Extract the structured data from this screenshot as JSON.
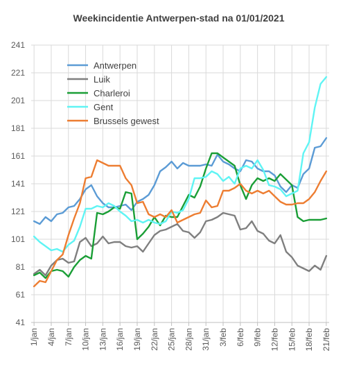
{
  "chart_data": {
    "type": "line",
    "title": "Weekincidentie  Antwerpen-stad  na 01/01/2021",
    "xlabel": "",
    "ylabel": "",
    "ylim": [
      41,
      241
    ],
    "yticks": [
      41,
      61,
      81,
      101,
      121,
      141,
      161,
      181,
      201,
      221,
      241
    ],
    "grid": true,
    "legend_position": "top-left",
    "x_tick_labels": [
      "1/jan",
      "4/jan",
      "7/jan",
      "10/jan",
      "13/jan",
      "16/jan",
      "19/jan",
      "22/jan",
      "25/jan",
      "28/jan",
      "31/jan",
      "3/feb",
      "6/feb",
      "9/feb",
      "12/feb",
      "15/feb",
      "18/feb",
      "21/feb"
    ],
    "x_tick_days": [
      1,
      4,
      7,
      10,
      13,
      16,
      19,
      22,
      25,
      28,
      31,
      34,
      37,
      40,
      43,
      46,
      49,
      52
    ],
    "series": [
      {
        "name": "Antwerpen",
        "color": "#5B9BD5",
        "x": [
          1,
          2,
          3,
          4,
          5,
          6,
          7,
          8,
          9,
          10,
          11,
          12,
          13,
          14,
          15,
          16,
          17,
          18,
          19,
          20,
          21,
          22,
          23,
          24,
          25,
          26,
          27,
          28,
          29,
          30,
          31,
          32,
          33,
          34,
          35,
          36,
          37,
          38,
          39,
          40,
          41,
          42,
          43,
          44,
          45,
          46,
          47,
          48,
          49,
          50,
          51,
          52
        ],
        "values": [
          114,
          112,
          117,
          114,
          119,
          120,
          124,
          125,
          130,
          137,
          140,
          132,
          127,
          124,
          124,
          125,
          126,
          122,
          128,
          130,
          133,
          140,
          150,
          153,
          157,
          152,
          156,
          154,
          154,
          154,
          155,
          154,
          162,
          157,
          155,
          152,
          150,
          158,
          157,
          152,
          150,
          150,
          147,
          139,
          135,
          140,
          138,
          148,
          152,
          167,
          168,
          174
        ]
      },
      {
        "name": "Luik",
        "color": "#7F7F7F",
        "x": [
          1,
          2,
          3,
          4,
          5,
          6,
          7,
          8,
          9,
          10,
          11,
          12,
          13,
          14,
          15,
          16,
          17,
          18,
          19,
          20,
          21,
          22,
          23,
          24,
          25,
          26,
          27,
          28,
          29,
          30,
          31,
          32,
          33,
          34,
          35,
          36,
          37,
          38,
          39,
          40,
          41,
          42,
          43,
          44,
          45,
          46,
          47,
          48,
          49,
          50,
          51,
          52
        ],
        "values": [
          76,
          79,
          75,
          82,
          86,
          87,
          84,
          85,
          99,
          102,
          96,
          98,
          103,
          98,
          99,
          99,
          96,
          95,
          96,
          92,
          98,
          104,
          107,
          108,
          110,
          112,
          107,
          106,
          102,
          106,
          114,
          115,
          117,
          120,
          119,
          118,
          108,
          109,
          114,
          107,
          105,
          100,
          98,
          104,
          92,
          88,
          82,
          80,
          78,
          82,
          79,
          89
        ]
      },
      {
        "name": "Charleroi",
        "color": "#1A9E36",
        "x": [
          1,
          2,
          3,
          4,
          5,
          6,
          7,
          8,
          9,
          10,
          11,
          12,
          13,
          14,
          15,
          16,
          17,
          18,
          19,
          20,
          21,
          22,
          23,
          24,
          25,
          26,
          27,
          28,
          29,
          30,
          31,
          32,
          33,
          34,
          35,
          36,
          37,
          38,
          39,
          40,
          41,
          42,
          43,
          44,
          45,
          46,
          47,
          48,
          49,
          50,
          51,
          52
        ],
        "values": [
          75,
          77,
          73,
          78,
          79,
          78,
          74,
          81,
          86,
          89,
          87,
          120,
          119,
          121,
          124,
          123,
          135,
          134,
          101,
          105,
          110,
          117,
          111,
          118,
          117,
          117,
          125,
          133,
          131,
          139,
          152,
          163,
          163,
          160,
          157,
          154,
          140,
          130,
          140,
          145,
          143,
          145,
          143,
          148,
          144,
          140,
          117,
          114,
          115,
          115,
          115,
          116
        ]
      },
      {
        "name": "Gent",
        "color": "#5FF4F4",
        "x": [
          1,
          2,
          3,
          4,
          5,
          6,
          7,
          8,
          9,
          10,
          11,
          12,
          13,
          14,
          15,
          16,
          17,
          18,
          19,
          20,
          21,
          22,
          23,
          24,
          25,
          26,
          27,
          28,
          29,
          30,
          31,
          32,
          33,
          34,
          35,
          36,
          37,
          38,
          39,
          40,
          41,
          42,
          43,
          44,
          45,
          46,
          47,
          48,
          49,
          50,
          51,
          52
        ],
        "values": [
          103,
          99,
          96,
          93,
          94,
          92,
          97,
          100,
          110,
          123,
          123,
          125,
          124,
          127,
          125,
          121,
          118,
          114,
          115,
          113,
          115,
          113,
          112,
          114,
          121,
          120,
          122,
          130,
          145,
          145,
          146,
          150,
          148,
          143,
          146,
          141,
          152,
          154,
          152,
          158,
          151,
          140,
          139,
          137,
          132,
          134,
          136,
          163,
          171,
          196,
          213,
          218
        ]
      },
      {
        "name": "Brussels gewest",
        "color": "#ED7D31",
        "x": [
          1,
          2,
          3,
          4,
          5,
          6,
          7,
          8,
          9,
          10,
          11,
          12,
          13,
          14,
          15,
          16,
          17,
          18,
          19,
          20,
          21,
          22,
          23,
          24,
          25,
          26,
          27,
          28,
          29,
          30,
          31,
          32,
          33,
          34,
          35,
          36,
          37,
          38,
          39,
          40,
          41,
          42,
          43,
          44,
          45,
          46,
          47,
          48,
          49,
          50,
          51,
          52
        ],
        "values": [
          67,
          71,
          70,
          78,
          86,
          90,
          104,
          116,
          127,
          145,
          146,
          158,
          156,
          154,
          154,
          154,
          145,
          140,
          127,
          128,
          119,
          117,
          119,
          117,
          122,
          113,
          115,
          117,
          119,
          120,
          129,
          124,
          125,
          136,
          136,
          138,
          141,
          136,
          134,
          136,
          134,
          136,
          132,
          128,
          126,
          126,
          127,
          127,
          130,
          135,
          143,
          150
        ]
      }
    ]
  }
}
